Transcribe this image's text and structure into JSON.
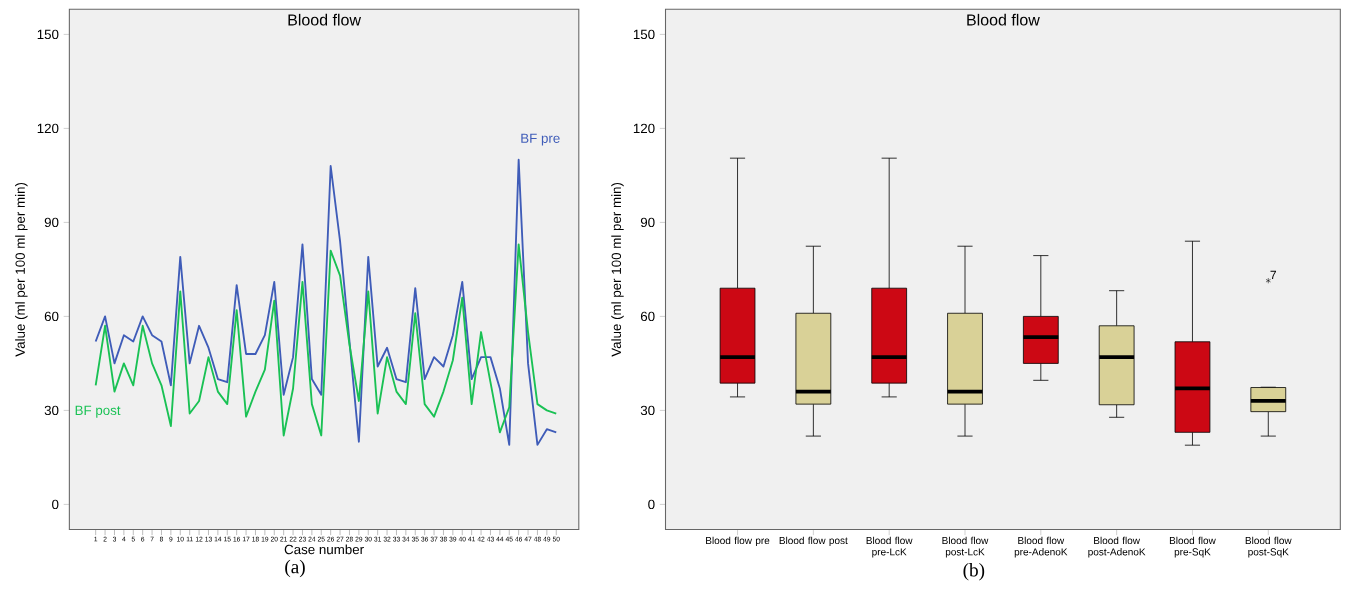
{
  "chart_data": [
    {
      "type": "line",
      "title": "Blood flow",
      "xlabel": "Case number",
      "ylabel": "Value (ml per 100 ml per min)",
      "categories": [
        "1",
        "2",
        "3",
        "4",
        "5",
        "6",
        "7",
        "8",
        "9",
        "10",
        "11",
        "12",
        "13",
        "14",
        "15",
        "16",
        "17",
        "18",
        "19",
        "20",
        "21",
        "22",
        "23",
        "24",
        "25",
        "26",
        "27",
        "28",
        "29",
        "30",
        "31",
        "32",
        "33",
        "34",
        "35",
        "36",
        "37",
        "38",
        "39",
        "40",
        "41",
        "42",
        "43",
        "44",
        "45",
        "46",
        "47",
        "48",
        "49",
        "50"
      ],
      "series": [
        {
          "name": "BF pre",
          "color": "#3f5cb8",
          "values": [
            52,
            60,
            45,
            54,
            52,
            60,
            54,
            52,
            38,
            79,
            45,
            57,
            50,
            40,
            39,
            70,
            48,
            48,
            54,
            71,
            35,
            47,
            83,
            40,
            35,
            108,
            84,
            52,
            20,
            79,
            44,
            50,
            40,
            39,
            69,
            40,
            47,
            44,
            54,
            71,
            40,
            47,
            47,
            37,
            19,
            110,
            45,
            19,
            24,
            23
          ]
        },
        {
          "name": "BF post",
          "color": "#19c154",
          "values": [
            38,
            57,
            36,
            45,
            38,
            57,
            45,
            38,
            25,
            68,
            29,
            33,
            47,
            36,
            32,
            62,
            28,
            36,
            43,
            65,
            22,
            37,
            71,
            32,
            22,
            81,
            73,
            51,
            33,
            68,
            29,
            47,
            36,
            32,
            61,
            32,
            28,
            36,
            46,
            66,
            32,
            55,
            39,
            23,
            31,
            83,
            55,
            32,
            30,
            29
          ]
        }
      ],
      "ylim": [
        -8,
        158
      ],
      "yticks": [
        0,
        30,
        60,
        90,
        120,
        150
      ],
      "marker": "none",
      "line_style": "solid",
      "annotations": [
        "(a)"
      ]
    },
    {
      "type": "box",
      "title": "Blood flow",
      "ylabel": "Value (ml per 100 ml per min)",
      "categories": [
        "Blood flow pre",
        "Blood flow post",
        "Blood flow pre-LcK",
        "Blood flow post-LcK",
        "Blood flow pre-AdenoK",
        "Blood flow post-AdenoK",
        "Blood flow pre-SqK",
        "Blood flow post-SqK"
      ],
      "colors": [
        "#cc0814",
        "#d9d197",
        "#cc0814",
        "#d9d197",
        "#cc0814",
        "#d9d197",
        "#cc0814",
        "#d9d197"
      ],
      "boxes": [
        {
          "low": 34.3,
          "q1": 38.7,
          "median": 47,
          "q3": 69,
          "high": 110.5
        },
        {
          "low": 21.8,
          "q1": 32,
          "median": 36,
          "q3": 61,
          "high": 82.4
        },
        {
          "low": 34.3,
          "q1": 38.7,
          "median": 47,
          "q3": 69,
          "high": 110.5
        },
        {
          "low": 21.8,
          "q1": 32,
          "median": 36,
          "q3": 61,
          "high": 82.4
        },
        {
          "low": 39.6,
          "q1": 45,
          "median": 53.4,
          "q3": 60,
          "high": 79.4
        },
        {
          "low": 27.8,
          "q1": 31.8,
          "median": 47,
          "q3": 57,
          "high": 68.2
        },
        {
          "low": 18.9,
          "q1": 23,
          "median": 37,
          "q3": 51.9,
          "high": 84
        },
        {
          "low": 21.8,
          "q1": 29.6,
          "median": 33,
          "q3": 37.3,
          "high": 37.4,
          "outliers": [
            71.4
          ]
        }
      ],
      "ylim": [
        -8,
        158
      ],
      "yticks": [
        0,
        30,
        60,
        90,
        120,
        150
      ],
      "annotations": [
        "7",
        "(b)"
      ]
    }
  ]
}
